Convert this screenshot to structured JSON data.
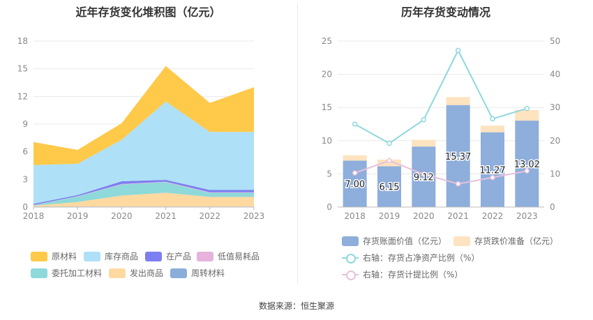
{
  "left": {
    "title": "近年存货变化堆积图（亿元）",
    "legend": [
      {
        "label": "原材料",
        "color": "#ffc94a"
      },
      {
        "label": "库存商品",
        "color": "#aee0f7"
      },
      {
        "label": "在产品",
        "color": "#7b7ff0"
      },
      {
        "label": "低值易耗品",
        "color": "#e6b3dc"
      },
      {
        "label": "委托加工材料",
        "color": "#8ed9da"
      },
      {
        "label": "发出商品",
        "color": "#ffd9a0"
      },
      {
        "label": "周转材料",
        "color": "#8aaed8"
      }
    ]
  },
  "right": {
    "title": "历年存货变动情况",
    "legend": [
      {
        "label": "存货账面价值（亿元）",
        "color": "#8eaedb",
        "kind": "bar"
      },
      {
        "label": "存货跌价准备（亿元）",
        "color": "#fde3bf",
        "kind": "bar"
      },
      {
        "label": "右轴：存货占净资产比例（%）",
        "color": "#8fd7df",
        "kind": "line"
      },
      {
        "label": "右轴：存货计提比例（%）",
        "color": "#e8c0dc",
        "kind": "line"
      }
    ]
  },
  "source": "数据来源：恒生聚源",
  "chart_data": [
    {
      "type": "area",
      "title": "近年存货变化堆积图（亿元）",
      "x": [
        "2018",
        "2019",
        "2020",
        "2021",
        "2022",
        "2023"
      ],
      "ylim": [
        0,
        18
      ],
      "yticks": [
        0,
        3,
        6,
        9,
        12,
        15,
        18
      ],
      "grid": true,
      "legend_position": "bottom",
      "stack_order_bottom_to_top": [
        "周转材料",
        "发出商品",
        "委托加工材料",
        "低值易耗品",
        "在产品",
        "库存商品",
        "原材料"
      ],
      "series": [
        {
          "name": "周转材料",
          "values": [
            0.05,
            0.05,
            0.05,
            0.05,
            0.05,
            0.05
          ]
        },
        {
          "name": "发出商品",
          "values": [
            0.1,
            0.5,
            1.2,
            1.5,
            1.05,
            1.05
          ]
        },
        {
          "name": "委托加工材料",
          "values": [
            0.05,
            0.6,
            1.2,
            1.15,
            0.45,
            0.45
          ]
        },
        {
          "name": "低值易耗品",
          "values": [
            0.02,
            0.03,
            0.05,
            0.05,
            0.05,
            0.05
          ]
        },
        {
          "name": "在产品",
          "values": [
            0.13,
            0.12,
            0.3,
            0.2,
            0.25,
            0.25
          ]
        },
        {
          "name": "库存商品",
          "values": [
            4.2,
            3.4,
            4.5,
            8.5,
            6.3,
            6.3
          ]
        },
        {
          "name": "原材料",
          "values": [
            2.5,
            1.5,
            1.8,
            3.85,
            3.15,
            4.85
          ]
        }
      ]
    },
    {
      "type": "bar",
      "title": "历年存货变动情况",
      "categories": [
        "2018",
        "2019",
        "2020",
        "2021",
        "2022",
        "2023"
      ],
      "ylim_left": [
        0,
        25
      ],
      "yticks_left": [
        0,
        5,
        10,
        15,
        20,
        25
      ],
      "ylim_right": [
        0,
        50
      ],
      "yticks_right": [
        0,
        10,
        20,
        30,
        40,
        50
      ],
      "grid": true,
      "legend_position": "bottom",
      "series": [
        {
          "name": "存货账面价值（亿元）",
          "kind": "bar",
          "axis": "left",
          "stack": true,
          "values": [
            7.0,
            6.15,
            9.12,
            15.37,
            11.27,
            13.02
          ],
          "labels": [
            "7.00",
            "6.15",
            "9.12",
            "15.37",
            "11.27",
            "13.02"
          ]
        },
        {
          "name": "存货跌价准备（亿元）",
          "kind": "bar",
          "axis": "left",
          "stack": true,
          "values": [
            0.8,
            1.0,
            1.0,
            1.2,
            1.0,
            1.6
          ]
        },
        {
          "name": "右轴：存货占净资产比例（%）",
          "kind": "line",
          "axis": "right",
          "values": [
            25.0,
            19.2,
            26.3,
            47.2,
            26.6,
            29.7
          ]
        },
        {
          "name": "右轴：存货计提比例（%）",
          "kind": "line",
          "axis": "right",
          "values": [
            10.3,
            14.0,
            9.9,
            7.0,
            8.9,
            10.9
          ]
        }
      ]
    }
  ]
}
